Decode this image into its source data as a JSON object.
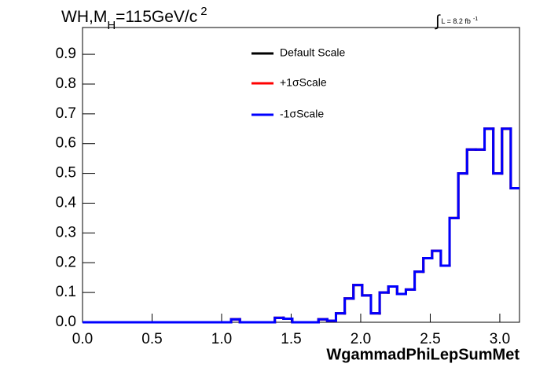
{
  "chart_data": {
    "type": "histogram",
    "title": [
      "WH,M",
      "H",
      "=115GeV/c",
      "2"
    ],
    "annotation": [
      "∫",
      "L = 8.2 fb",
      "-1"
    ],
    "x_label": "WgammadPhiLepSumMet",
    "bins": [
      0,
      0.0628,
      0.1257,
      0.1885,
      0.2513,
      0.3142,
      0.377,
      0.4398,
      0.5027,
      0.5655,
      0.6283,
      0.6912,
      0.754,
      0.8168,
      0.8796,
      0.9425,
      1.0053,
      1.0681,
      1.131,
      1.1938,
      1.2566,
      1.3195,
      1.3823,
      1.4451,
      1.508,
      1.5708,
      1.6336,
      1.6965,
      1.7593,
      1.8221,
      1.885,
      1.9478,
      2.0106,
      2.0735,
      2.1363,
      2.1991,
      2.2619,
      2.3248,
      2.3876,
      2.4504,
      2.5133,
      2.5761,
      2.6389,
      2.7018,
      2.7646,
      2.8274,
      2.8903,
      2.9531,
      3.0159,
      3.0788,
      3.1416
    ],
    "series": [
      {
        "name": "Default Scale",
        "color": "#000000",
        "values": [
          0,
          0,
          0,
          0,
          0,
          0,
          0,
          0,
          0,
          0,
          0,
          0,
          0,
          0,
          0,
          0,
          0,
          0.01,
          0,
          0,
          0,
          0,
          0.015,
          0.012,
          0,
          0,
          0,
          0.01,
          0.005,
          0.03,
          0.08,
          0.125,
          0.09,
          0.03,
          0.1,
          0.12,
          0.095,
          0.11,
          0.17,
          0.215,
          0.24,
          0.19,
          0.35,
          0.5,
          0.58,
          0.58,
          0.65,
          0.5,
          0.65,
          0.45
        ]
      },
      {
        "name": "+1σScale",
        "color": "#ff0000",
        "values": [
          0,
          0,
          0,
          0,
          0,
          0,
          0,
          0,
          0,
          0,
          0,
          0,
          0,
          0,
          0,
          0,
          0,
          0.01,
          0,
          0,
          0,
          0,
          0.015,
          0.012,
          0,
          0,
          0,
          0.01,
          0.005,
          0.03,
          0.08,
          0.125,
          0.09,
          0.03,
          0.1,
          0.12,
          0.095,
          0.11,
          0.17,
          0.215,
          0.24,
          0.19,
          0.35,
          0.5,
          0.58,
          0.58,
          0.65,
          0.5,
          0.65,
          0.45
        ]
      },
      {
        "name": "-1σScale",
        "color": "#0000ff",
        "values": [
          0,
          0,
          0,
          0,
          0,
          0,
          0,
          0,
          0,
          0,
          0,
          0,
          0,
          0,
          0,
          0,
          0,
          0.01,
          0,
          0,
          0,
          0,
          0.015,
          0.012,
          0,
          0,
          0,
          0.01,
          0.005,
          0.03,
          0.08,
          0.125,
          0.09,
          0.03,
          0.1,
          0.12,
          0.095,
          0.11,
          0.17,
          0.215,
          0.24,
          0.19,
          0.35,
          0.5,
          0.58,
          0.58,
          0.65,
          0.5,
          0.65,
          0.45
        ]
      }
    ],
    "xlim": [
      0,
      3.1416
    ],
    "ylim": [
      0,
      0.99
    ],
    "xticks": [
      {
        "value": 0,
        "label": "0.0"
      },
      0.5,
      {
        "value": 1,
        "label": "1.0"
      },
      1.5,
      {
        "value": 2,
        "label": "2.0"
      },
      2.5,
      {
        "value": 3,
        "label": "3.0"
      }
    ],
    "yticks": [
      {
        "value": 0,
        "label": "0.0"
      },
      0.1,
      0.2,
      0.3,
      0.4,
      0.5,
      0.6,
      0.7,
      0.8,
      0.9
    ]
  }
}
